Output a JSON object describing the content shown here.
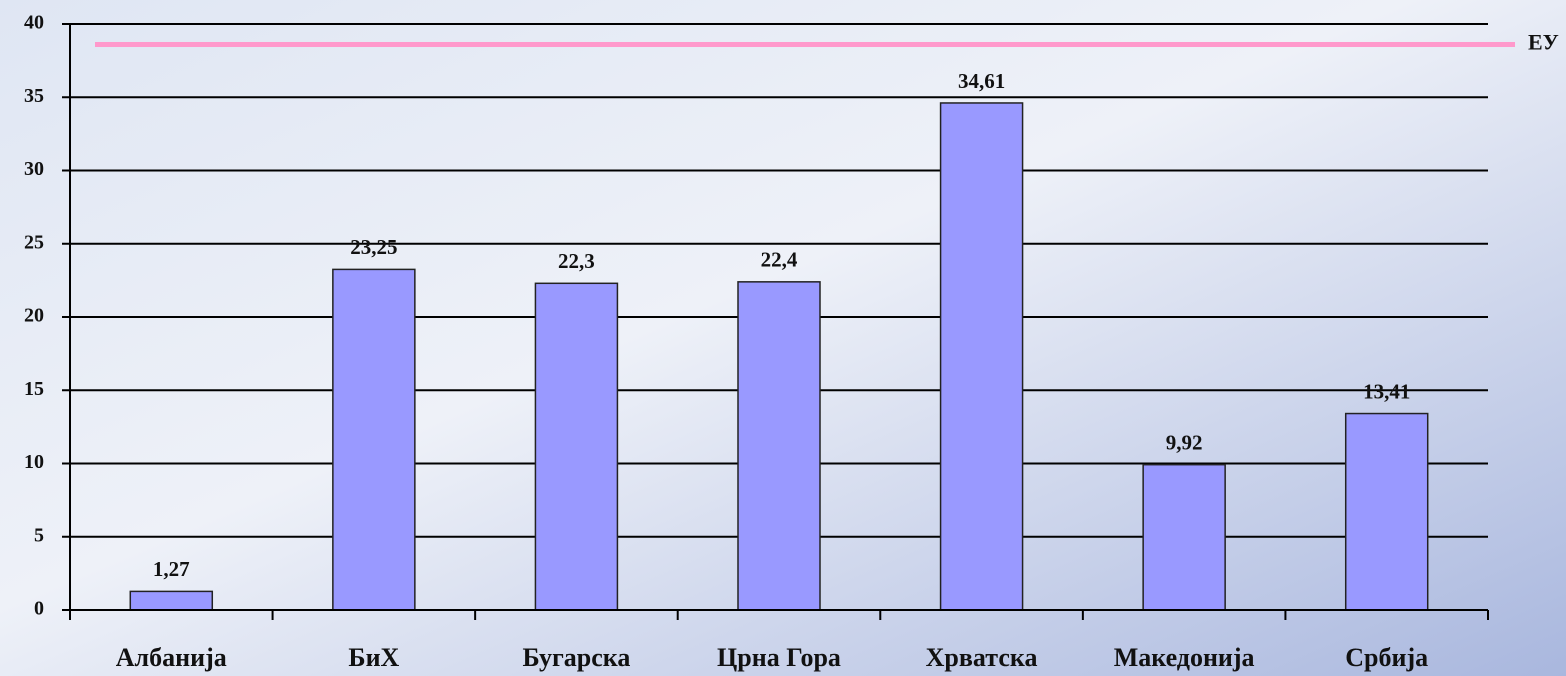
{
  "chart_data": {
    "type": "bar",
    "categories": [
      "Албанија",
      "БиХ",
      "Бугарска",
      "Црна Гора",
      "Хрватска",
      "Македонија",
      "Србија"
    ],
    "values": [
      1.27,
      23.25,
      22.3,
      22.4,
      34.61,
      9.92,
      13.41
    ],
    "value_labels": [
      "1,27",
      "23,25",
      "22,3",
      "22,4",
      "34,61",
      "9,92",
      "13,41"
    ],
    "color": "#9999ff",
    "ylim": [
      0,
      40
    ],
    "yticks": [
      0,
      5,
      10,
      15,
      20,
      25,
      30,
      35,
      40
    ],
    "grid": true,
    "reference_line": {
      "label": "ЕУ",
      "value": 38.6,
      "color": "#ff99cc"
    }
  }
}
